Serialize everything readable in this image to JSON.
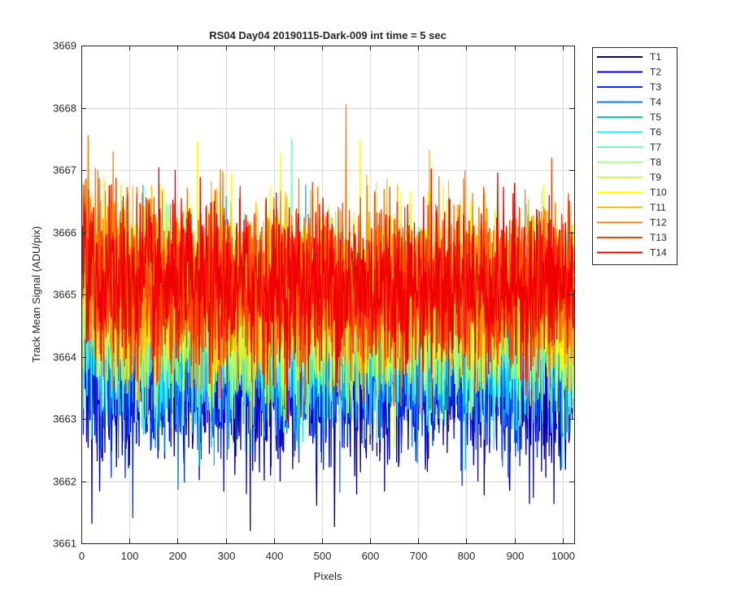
{
  "chart_data": {
    "type": "line",
    "title": "RS04 Day04 20190115-Dark-009 int time = 5 sec",
    "xlabel": "Pixels",
    "ylabel": "Track Mean Signal (ADU/pix)",
    "xlim": [
      0,
      1024
    ],
    "ylim": [
      3661,
      3669
    ],
    "xticks": [
      0,
      100,
      200,
      300,
      400,
      500,
      600,
      700,
      800,
      900,
      1000
    ],
    "yticks": [
      3661,
      3662,
      3663,
      3664,
      3665,
      3666,
      3667,
      3668,
      3669
    ],
    "grid": true,
    "legend_position": "outside-top-right",
    "n_points": 1024,
    "series": [
      {
        "name": "T1",
        "color": "#0000aa",
        "mean": 3663.6,
        "spread": 1.25
      },
      {
        "name": "T2",
        "color": "#0000e0",
        "mean": 3663.8,
        "spread": 1.25
      },
      {
        "name": "T3",
        "color": "#0033ff",
        "mean": 3664.0,
        "spread": 1.25
      },
      {
        "name": "T4",
        "color": "#0080ff",
        "mean": 3664.15,
        "spread": 1.25
      },
      {
        "name": "T5",
        "color": "#00bfff",
        "mean": 3664.3,
        "spread": 1.25
      },
      {
        "name": "T6",
        "color": "#1ff0ee",
        "mean": 3664.4,
        "spread": 1.25
      },
      {
        "name": "T7",
        "color": "#6cffb0",
        "mean": 3664.55,
        "spread": 1.25
      },
      {
        "name": "T8",
        "color": "#a0ff80",
        "mean": 3664.7,
        "spread": 1.25
      },
      {
        "name": "T9",
        "color": "#d0ff40",
        "mean": 3664.85,
        "spread": 1.25
      },
      {
        "name": "T10",
        "color": "#ffff00",
        "mean": 3665.0,
        "spread": 1.25
      },
      {
        "name": "T11",
        "color": "#ffbf00",
        "mean": 3665.05,
        "spread": 1.25
      },
      {
        "name": "T12",
        "color": "#ff7f00",
        "mean": 3665.1,
        "spread": 1.25
      },
      {
        "name": "T13",
        "color": "#ff3f00",
        "mean": 3665.1,
        "spread": 1.25
      },
      {
        "name": "T14",
        "color": "#f00000",
        "mean": 3665.15,
        "spread": 1.2
      }
    ]
  }
}
